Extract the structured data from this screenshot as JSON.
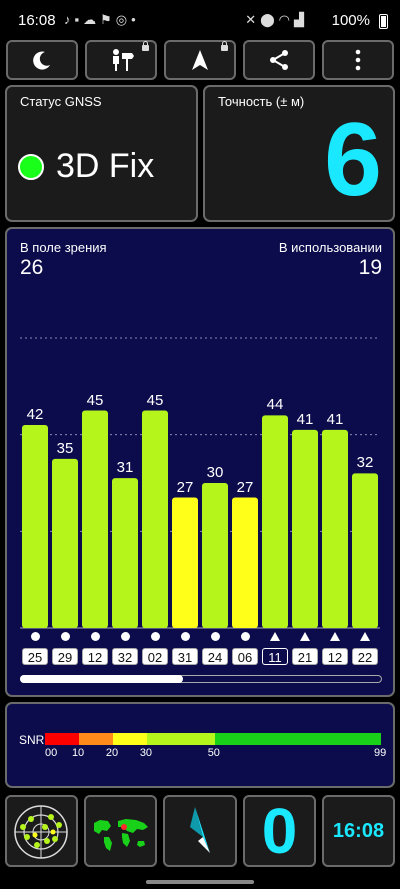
{
  "status_bar": {
    "time": "16:08",
    "left_icons": [
      "tiktok-icon",
      "message-icon",
      "cloud-icon",
      "flag-icon",
      "sync-icon"
    ],
    "right_icons": [
      "mute-icon",
      "location-icon",
      "wifi-icon",
      "signal-icon"
    ],
    "battery_text": "100%"
  },
  "toolbar": {
    "buttons": [
      {
        "icon": "moon-icon",
        "locked": false
      },
      {
        "icon": "person-signpost-icon",
        "locked": true
      },
      {
        "icon": "navigation-arrow-icon",
        "locked": true
      },
      {
        "icon": "share-icon",
        "locked": false
      },
      {
        "icon": "more-vertical-icon",
        "locked": false
      }
    ]
  },
  "gnss_status": {
    "label": "Статус GNSS",
    "value": "3D Fix",
    "indicator_color": "#1aff1a"
  },
  "accuracy": {
    "label": "Точность (± м)",
    "value": "6",
    "color": "#1ae8ff"
  },
  "satellites": {
    "in_view_label": "В поле зрения",
    "in_view_count": "26",
    "in_use_label": "В использовании",
    "in_use_count": "19",
    "scroll_position": 0.45
  },
  "chart_data": {
    "type": "bar",
    "categories": [
      "25",
      "29",
      "12",
      "32",
      "02",
      "31",
      "24",
      "06",
      "11",
      "21",
      "12",
      "22"
    ],
    "values": [
      42,
      35,
      45,
      31,
      45,
      27,
      30,
      27,
      44,
      41,
      41,
      32
    ],
    "marker": [
      "circle",
      "circle",
      "circle",
      "circle",
      "circle",
      "circle",
      "circle",
      "circle",
      "triangle",
      "triangle",
      "triangle",
      "triangle"
    ],
    "active": [
      false,
      false,
      false,
      false,
      false,
      false,
      false,
      false,
      true,
      false,
      false,
      false
    ],
    "ylim": [
      0,
      60
    ],
    "gridlines": [
      20,
      40,
      60
    ],
    "colors": {
      "strong": "#b5f51c",
      "weak": "#ffff1a",
      "background": "#0c0c4c"
    }
  },
  "snr_scale": {
    "label": "SNR",
    "ticks": [
      "00",
      "10",
      "20",
      "30",
      "50",
      "99"
    ],
    "segments": [
      {
        "from": 0,
        "to": 10,
        "color": "#ff0000"
      },
      {
        "from": 10,
        "to": 20,
        "color": "#ff8c1a"
      },
      {
        "from": 20,
        "to": 30,
        "color": "#ffff1a"
      },
      {
        "from": 30,
        "to": 50,
        "color": "#b5f51c"
      },
      {
        "from": 50,
        "to": 99,
        "color": "#1ad11a"
      }
    ]
  },
  "bottom_bar": {
    "radar_icon": "radar-icon",
    "map_icon": "world-map-icon",
    "compass_icon": "compass-icon",
    "speed_value": "0",
    "speed_color": "#1ae8ff",
    "clock_value": "16:08",
    "clock_color": "#1ae8ff"
  }
}
